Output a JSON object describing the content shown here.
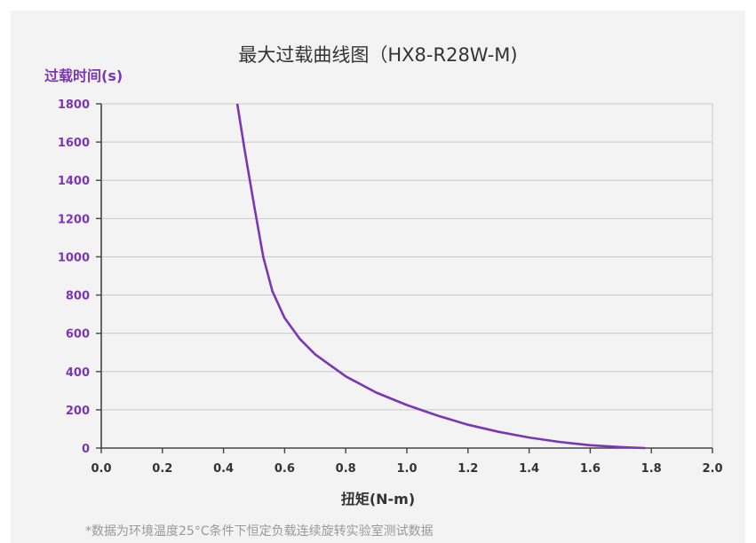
{
  "chart_data": {
    "type": "line",
    "title": "最大过载曲线图（HX8-R28W-M)",
    "ylabel": "过载时间(s)",
    "xlabel": "扭矩(N-m)",
    "note": "*数据为环境温度25°C条件下恒定负载连续旋转实验室测试数据",
    "xlim": [
      0,
      2.0
    ],
    "ylim": [
      0,
      1800
    ],
    "x_ticks": [
      0.0,
      0.2,
      0.4,
      0.6,
      0.8,
      1.0,
      1.2,
      1.4,
      1.6,
      1.8,
      2.0
    ],
    "y_ticks": [
      0,
      200,
      400,
      600,
      800,
      1000,
      1200,
      1400,
      1600,
      1800
    ],
    "grid": true,
    "colors": {
      "line": "#7b36b5",
      "axis_label": "#7b36b5"
    },
    "series": [
      {
        "x": [
          0.445,
          0.47,
          0.5,
          0.53,
          0.56,
          0.6,
          0.65,
          0.7,
          0.8,
          0.9,
          1.0,
          1.1,
          1.2,
          1.3,
          1.4,
          1.5,
          1.6,
          1.7,
          1.78
        ],
        "y": [
          1800,
          1550,
          1270,
          1000,
          820,
          680,
          570,
          490,
          375,
          290,
          225,
          170,
          122,
          85,
          55,
          32,
          15,
          5,
          0
        ]
      }
    ]
  }
}
